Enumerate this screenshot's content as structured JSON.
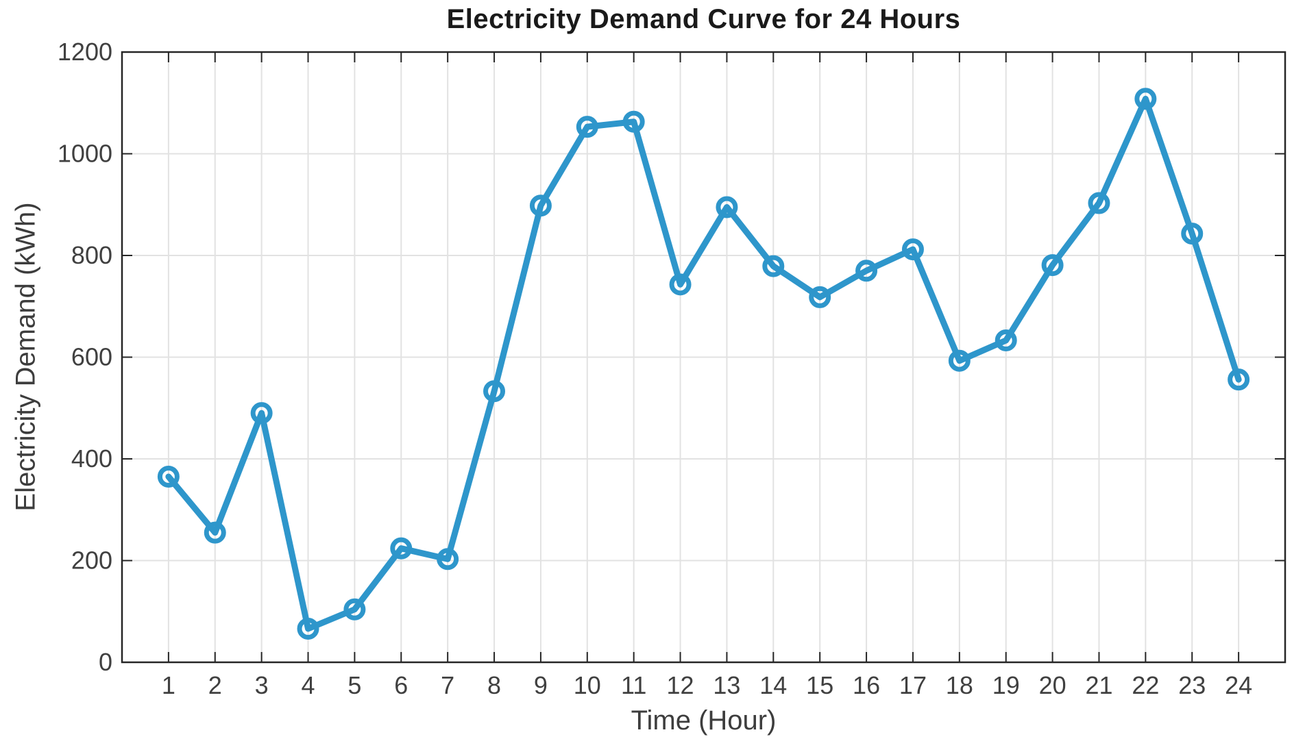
{
  "chart_data": {
    "type": "line",
    "title": "Electricity Demand Curve for 24 Hours",
    "xlabel": "Time (Hour)",
    "ylabel": "Electricity Demand (kWh)",
    "x": [
      1,
      2,
      3,
      4,
      5,
      6,
      7,
      8,
      9,
      10,
      11,
      12,
      13,
      14,
      15,
      16,
      17,
      18,
      19,
      20,
      21,
      22,
      23,
      24
    ],
    "y": [
      365,
      255,
      490,
      66,
      104,
      224,
      203,
      533,
      898,
      1053,
      1063,
      743,
      895,
      779,
      718,
      770,
      812,
      593,
      633,
      781,
      903,
      1108,
      843,
      556
    ],
    "series_name": "Electricity Demand",
    "xlim": [
      0,
      25
    ],
    "ylim": [
      0,
      1200
    ],
    "xticks": [
      1,
      2,
      3,
      4,
      5,
      6,
      7,
      8,
      9,
      10,
      11,
      12,
      13,
      14,
      15,
      16,
      17,
      18,
      19,
      20,
      21,
      22,
      23,
      24
    ],
    "yticks": [
      0,
      200,
      400,
      600,
      800,
      1000,
      1200
    ],
    "grid": true,
    "legend": "none",
    "line_color": "#2E96CB",
    "marker": "open-circle",
    "grid_color": "#E2E2E2",
    "axis_color": "#262626",
    "tick_label_color": "#404040"
  }
}
